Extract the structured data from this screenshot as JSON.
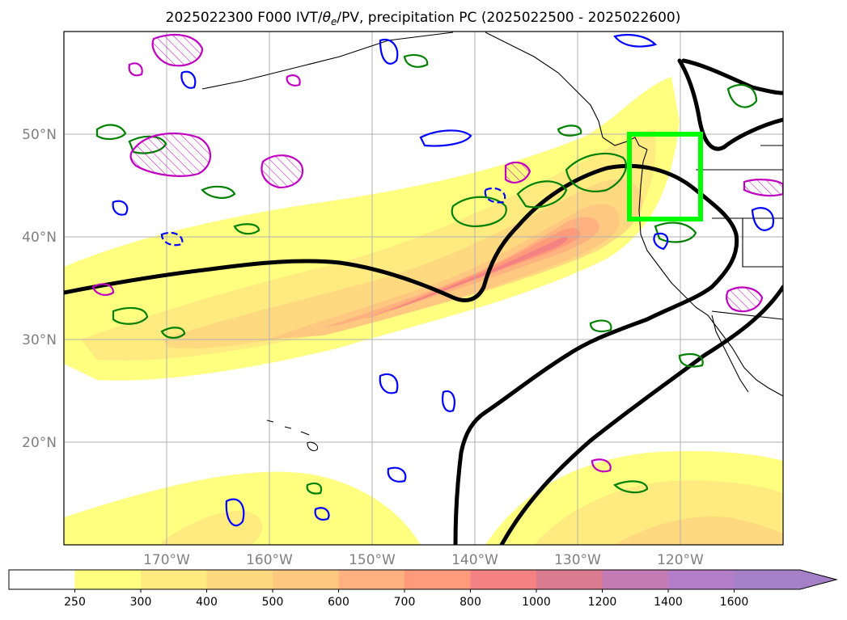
{
  "chart_data": {
    "type": "map",
    "title_prefix": "2025022300 F000 IVT/",
    "title_theta": "θ",
    "title_sub": "e",
    "title_suffix": "/PV, precipitation PC (2025022500 - 2025022600)",
    "x_ticks": [
      "170°W",
      "160°W",
      "150°W",
      "140°W",
      "130°W",
      "120°W"
    ],
    "y_ticks": [
      "20°N",
      "30°N",
      "40°N",
      "50°N"
    ],
    "lon_range": [
      -180,
      -110
    ],
    "lat_range": [
      10,
      60
    ],
    "grid": true,
    "highlight_box": {
      "lon": [
        -125,
        -118
      ],
      "lat": [
        41.5,
        50
      ],
      "color": "#00ff00"
    },
    "ivt_colorbar": {
      "levels": [
        250,
        300,
        400,
        500,
        600,
        700,
        800,
        1000,
        1200,
        1400,
        1600
      ],
      "level_labels": [
        "250",
        "300",
        "400",
        "500",
        "600",
        "700",
        "800",
        "1000",
        "1200",
        "1400",
        "1600"
      ],
      "colors": [
        "#ffffff",
        "#ffff80",
        "#ffeb80",
        "#ffd980",
        "#ffc880",
        "#ffb280",
        "#ff9a7a",
        "#f58282",
        "#da7b8f",
        "#c47ab2",
        "#b37ec7",
        "#a680c6"
      ],
      "extend": "max"
    },
    "contour_colors": {
      "pv": "#000000",
      "theta_e": "#008000",
      "precip": "#0000ff",
      "highlight": "#c000c0"
    }
  }
}
